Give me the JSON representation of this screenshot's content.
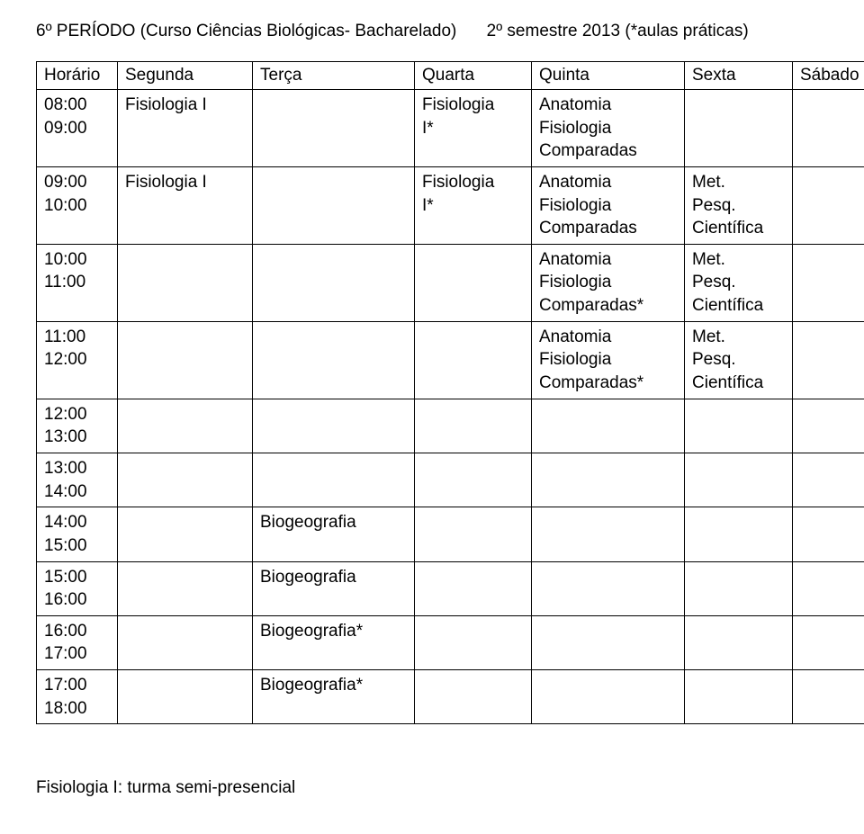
{
  "title": {
    "left": "6º PERÍODO (Curso Ciências Biológicas- Bacharelado)",
    "right": "2º semestre 2013 (*aulas práticas)"
  },
  "headers": {
    "time": "Horário",
    "seg": "Segunda",
    "ter": "Terça",
    "qua": "Quarta",
    "qui": "Quinta",
    "sex": "Sexta",
    "sab": "Sábado"
  },
  "rows": [
    {
      "time": [
        "08:00",
        "09:00"
      ],
      "seg": [
        "Fisiologia I"
      ],
      "ter": [],
      "qua": [
        "Fisiologia",
        "I*"
      ],
      "qui": [
        "Anatomia",
        "Fisiologia",
        "Comparadas"
      ],
      "sex": [],
      "sab": []
    },
    {
      "time": [
        "09:00",
        "10:00"
      ],
      "seg": [
        "Fisiologia I"
      ],
      "ter": [],
      "qua": [
        "Fisiologia",
        "I*"
      ],
      "qui": [
        "Anatomia",
        "Fisiologia",
        "Comparadas"
      ],
      "sex": [
        "Met.",
        "Pesq.",
        "Científica"
      ],
      "sab": []
    },
    {
      "time": [
        "10:00",
        "11:00"
      ],
      "seg": [],
      "ter": [],
      "qua": [],
      "qui": [
        "Anatomia",
        "Fisiologia",
        "Comparadas*"
      ],
      "sex": [
        "Met.",
        "Pesq.",
        "Científica"
      ],
      "sab": []
    },
    {
      "time": [
        "11:00",
        "12:00"
      ],
      "seg": [],
      "ter": [],
      "qua": [],
      "qui": [
        "Anatomia",
        "Fisiologia",
        "Comparadas*"
      ],
      "sex": [
        "Met.",
        "Pesq.",
        "Científica"
      ],
      "sab": []
    },
    {
      "time": [
        "12:00",
        "13:00"
      ],
      "seg": [],
      "ter": [],
      "qua": [],
      "qui": [],
      "sex": [],
      "sab": []
    },
    {
      "time": [
        "13:00",
        "14:00"
      ],
      "seg": [],
      "ter": [],
      "qua": [],
      "qui": [],
      "sex": [],
      "sab": []
    },
    {
      "time": [
        "14:00",
        "15:00"
      ],
      "seg": [],
      "ter": [
        "Biogeografia"
      ],
      "qua": [],
      "qui": [],
      "sex": [],
      "sab": []
    },
    {
      "time": [
        "15:00",
        "16:00"
      ],
      "seg": [],
      "ter": [
        "Biogeografia"
      ],
      "qua": [],
      "qui": [],
      "sex": [],
      "sab": []
    },
    {
      "time": [
        "16:00",
        "17:00"
      ],
      "seg": [],
      "ter": [
        "Biogeografia*"
      ],
      "qua": [],
      "qui": [],
      "sex": [],
      "sab": []
    },
    {
      "time": [
        "17:00",
        "18:00"
      ],
      "seg": [],
      "ter": [
        "Biogeografia*"
      ],
      "qua": [],
      "qui": [],
      "sex": [],
      "sab": []
    }
  ],
  "footnote": "Fisiologia I: turma semi-presencial"
}
